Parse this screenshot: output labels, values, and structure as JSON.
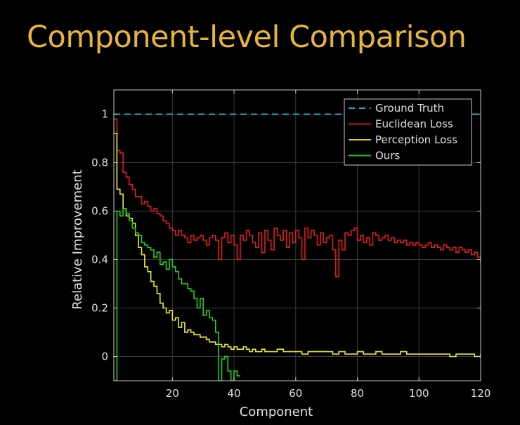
{
  "slide": {
    "title": "Component-level Comparison",
    "title_color": "#e8b43a"
  },
  "chart_data": {
    "type": "line",
    "step": true,
    "xlabel": "Component",
    "ylabel": "Relative Improvement",
    "xlim": [
      1,
      120
    ],
    "ylim": [
      -0.1,
      1.1
    ],
    "xticks": [
      20,
      40,
      60,
      80,
      100,
      120
    ],
    "yticks": [
      0,
      0.2,
      0.4,
      0.6,
      0.8,
      1
    ],
    "ytick_labels": [
      "0",
      "0.2",
      "0.4",
      "0.6",
      "0.8",
      "1"
    ],
    "grid": true,
    "legend": "top-right",
    "colors": {
      "background": "#000000",
      "axes": "#c8c8c8",
      "grid": "#3a3a3a",
      "text": "#e0e0e0"
    },
    "series": [
      {
        "name": "Ground Truth",
        "color": "#1fc8d6",
        "dash": true,
        "x": [
          1,
          120
        ],
        "y": [
          1,
          1
        ]
      },
      {
        "name": "Euclidean Loss",
        "color": "#e01e1e",
        "x": [
          1,
          2,
          3,
          4,
          5,
          6,
          7,
          8,
          9,
          10,
          11,
          12,
          13,
          14,
          15,
          16,
          17,
          18,
          19,
          20,
          21,
          22,
          23,
          24,
          25,
          26,
          27,
          28,
          29,
          30,
          31,
          32,
          33,
          34,
          35,
          36,
          37,
          38,
          39,
          40,
          41,
          42,
          43,
          44,
          45,
          46,
          47,
          48,
          49,
          50,
          51,
          52,
          53,
          54,
          55,
          56,
          57,
          58,
          59,
          60,
          61,
          62,
          63,
          64,
          65,
          66,
          67,
          68,
          69,
          70,
          71,
          72,
          73,
          74,
          75,
          76,
          77,
          78,
          79,
          80,
          81,
          82,
          83,
          84,
          85,
          86,
          87,
          88,
          89,
          90,
          91,
          92,
          93,
          94,
          95,
          96,
          97,
          98,
          99,
          100,
          101,
          102,
          103,
          104,
          105,
          106,
          107,
          108,
          109,
          110,
          111,
          112,
          113,
          114,
          115,
          116,
          117,
          118,
          119,
          120
        ],
        "y": [
          0.98,
          0.85,
          0.84,
          0.76,
          0.74,
          0.71,
          0.69,
          0.66,
          0.66,
          0.63,
          0.64,
          0.62,
          0.6,
          0.61,
          0.59,
          0.58,
          0.56,
          0.55,
          0.53,
          0.52,
          0.5,
          0.52,
          0.5,
          0.49,
          0.47,
          0.5,
          0.48,
          0.49,
          0.5,
          0.48,
          0.46,
          0.49,
          0.5,
          0.48,
          0.4,
          0.49,
          0.51,
          0.47,
          0.5,
          0.46,
          0.4,
          0.5,
          0.48,
          0.52,
          0.5,
          0.47,
          0.45,
          0.51,
          0.43,
          0.52,
          0.48,
          0.44,
          0.53,
          0.5,
          0.48,
          0.52,
          0.45,
          0.51,
          0.47,
          0.52,
          0.49,
          0.4,
          0.53,
          0.49,
          0.52,
          0.5,
          0.46,
          0.51,
          0.47,
          0.49,
          0.5,
          0.44,
          0.33,
          0.48,
          0.44,
          0.51,
          0.5,
          0.52,
          0.53,
          0.48,
          0.5,
          0.47,
          0.49,
          0.46,
          0.51,
          0.5,
          0.48,
          0.49,
          0.5,
          0.48,
          0.49,
          0.47,
          0.48,
          0.47,
          0.48,
          0.46,
          0.47,
          0.46,
          0.47,
          0.46,
          0.45,
          0.46,
          0.47,
          0.45,
          0.46,
          0.45,
          0.44,
          0.46,
          0.45,
          0.44,
          0.45,
          0.43,
          0.45,
          0.44,
          0.43,
          0.44,
          0.42,
          0.43,
          0.41,
          0.39
        ]
      },
      {
        "name": "Perception Loss",
        "color": "#eaea28",
        "x": [
          1,
          2,
          3,
          4,
          5,
          6,
          7,
          8,
          9,
          10,
          11,
          12,
          13,
          14,
          15,
          16,
          17,
          18,
          19,
          20,
          21,
          22,
          23,
          24,
          25,
          26,
          27,
          28,
          29,
          30,
          31,
          32,
          33,
          34,
          35,
          36,
          37,
          38,
          39,
          40,
          41,
          42,
          43,
          44,
          45,
          46,
          47,
          48,
          49,
          50,
          52,
          54,
          56,
          58,
          60,
          62,
          64,
          66,
          68,
          70,
          72,
          74,
          76,
          78,
          80,
          82,
          84,
          86,
          88,
          90,
          92,
          94,
          96,
          98,
          100,
          102,
          104,
          106,
          108,
          110,
          112,
          114,
          116,
          118,
          120
        ],
        "y": [
          0.92,
          0.69,
          0.67,
          0.61,
          0.58,
          0.57,
          0.55,
          0.5,
          0.45,
          0.42,
          0.37,
          0.35,
          0.31,
          0.29,
          0.26,
          0.22,
          0.2,
          0.18,
          0.19,
          0.15,
          0.16,
          0.12,
          0.14,
          0.1,
          0.11,
          0.1,
          0.09,
          0.09,
          0.08,
          0.08,
          0.07,
          0.06,
          0.06,
          0.05,
          0.05,
          0.04,
          0.05,
          0.04,
          0.03,
          0.04,
          0.03,
          0.03,
          0.04,
          0.03,
          0.02,
          0.03,
          0.02,
          0.02,
          0.03,
          0.02,
          0.02,
          0.03,
          0.02,
          0.02,
          0.02,
          0.01,
          0.02,
          0.02,
          0.02,
          0.02,
          0.01,
          0.02,
          0.01,
          0.01,
          0.02,
          0.01,
          0.01,
          0.02,
          0.01,
          0.01,
          0.01,
          0.02,
          0.01,
          0.01,
          0.01,
          0.01,
          0.01,
          0.01,
          0.01,
          0.0,
          0.01,
          0.01,
          0.01,
          0.0,
          0.01
        ]
      },
      {
        "name": "Ours",
        "color": "#22d022",
        "x": [
          1,
          2,
          3,
          4,
          5,
          6,
          7,
          8,
          9,
          10,
          11,
          12,
          13,
          14,
          15,
          16,
          17,
          18,
          19,
          20,
          21,
          22,
          23,
          24,
          25,
          26,
          27,
          28,
          29,
          30,
          31,
          32,
          33,
          34,
          35,
          36,
          37,
          38,
          39,
          40,
          41
        ],
        "y": [
          -0.1,
          0.6,
          0.58,
          0.61,
          0.59,
          0.56,
          0.53,
          0.51,
          0.5,
          0.47,
          0.46,
          0.45,
          0.44,
          0.41,
          0.43,
          0.38,
          0.39,
          0.36,
          0.4,
          0.37,
          0.35,
          0.32,
          0.3,
          0.3,
          0.28,
          0.27,
          0.24,
          0.2,
          0.24,
          0.17,
          0.19,
          0.16,
          0.15,
          0.1,
          -0.1,
          -0.01,
          0.0,
          -0.06,
          -0.1,
          -0.06,
          -0.08
        ]
      }
    ]
  }
}
